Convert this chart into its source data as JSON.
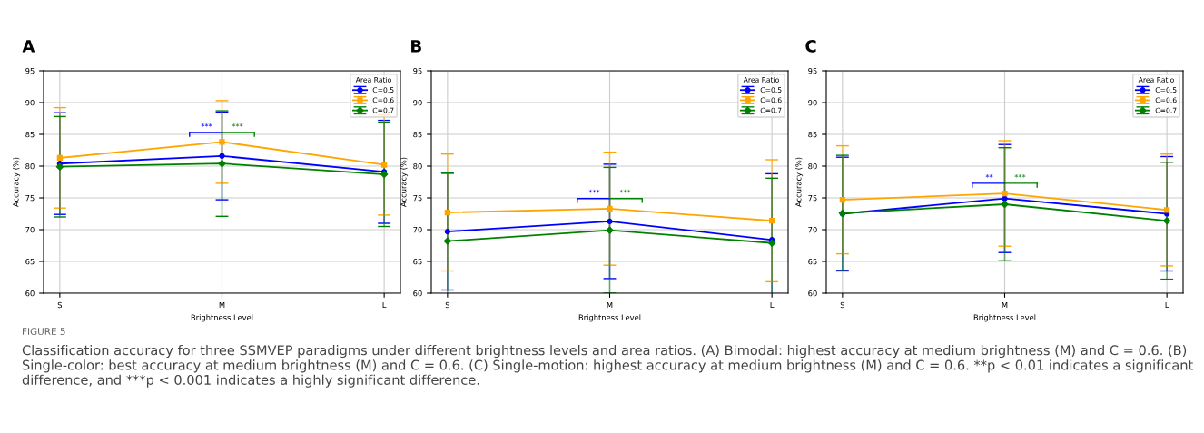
{
  "chart_data": [
    {
      "type": "line",
      "title": "A",
      "xlabel": "Brightness Level",
      "ylabel": "Accuracy (%)",
      "categories": [
        "S",
        "M",
        "L"
      ],
      "ylim": [
        60,
        95
      ],
      "yticks": [
        60,
        65,
        70,
        75,
        80,
        85,
        90,
        95
      ],
      "grid": true,
      "legend": "top right",
      "legend_title": "Area Ratio",
      "series": [
        {
          "name": "C=0.5",
          "color": "#0000ff",
          "marker": "circle",
          "values": [
            80.4,
            81.6,
            79.1
          ],
          "errors": [
            8.0,
            6.9,
            8.1
          ]
        },
        {
          "name": "C=0.6",
          "color": "#ffa500",
          "marker": "square",
          "values": [
            81.3,
            83.8,
            80.2
          ],
          "errors": [
            7.9,
            6.5,
            7.9
          ]
        },
        {
          "name": "C=0.7",
          "color": "#008000",
          "marker": "diamond",
          "values": [
            79.9,
            80.4,
            78.7
          ],
          "errors": [
            7.9,
            8.3,
            8.2
          ]
        }
      ],
      "annotations": [
        {
          "text": "***",
          "x": "M",
          "y": 85.3
        },
        {
          "text": "***",
          "x": "M",
          "y": 85.3
        },
        "FIGURE 5",
        "Classification accuracy for three SSMVEP paradigms under different brightness levels and area ratios. (A) Bimodal: highest accuracy at medium brightness (M) and C = 0.6. (B) Single-color: best accuracy at medium brightness (M) and C = 0.6. (C) Single-motion: highest accuracy at medium brightness (M) and C = 0.6. **p < 0.01 indicates a significant difference, and ***p < 0.001 indicates a highly significant difference."
      ]
    },
    {
      "type": "line",
      "title": "B",
      "xlabel": "Brightness Level",
      "ylabel": "Accuracy (%)",
      "categories": [
        "S",
        "M",
        "L"
      ],
      "ylim": [
        60,
        95
      ],
      "yticks": [
        60,
        65,
        70,
        75,
        80,
        85,
        90,
        95
      ],
      "grid": true,
      "legend": "top right",
      "legend_title": "Area Ratio",
      "series": [
        {
          "name": "C=0.5",
          "color": "#0000ff",
          "marker": "circle",
          "values": [
            69.7,
            71.3,
            68.4
          ],
          "errors": [
            9.2,
            9.0,
            10.4
          ]
        },
        {
          "name": "C=0.6",
          "color": "#ffa500",
          "marker": "square",
          "values": [
            72.7,
            73.3,
            71.4
          ],
          "errors": [
            9.2,
            8.9,
            9.6
          ]
        },
        {
          "name": "C=0.7",
          "color": "#008000",
          "marker": "diamond",
          "values": [
            68.2,
            69.9,
            67.9
          ],
          "errors": [
            10.7,
            9.9,
            10.2
          ]
        }
      ],
      "annotations": [
        {
          "text": "***",
          "x": "M",
          "y": 74.9
        },
        {
          "text": "***",
          "x": "M",
          "y": 74.9
        }
      ]
    },
    {
      "type": "line",
      "title": "C",
      "xlabel": "Brightness Level",
      "ylabel": "Accuracy (%)",
      "categories": [
        "S",
        "M",
        "L"
      ],
      "ylim": [
        60,
        95
      ],
      "yticks": [
        60,
        65,
        70,
        75,
        80,
        85,
        90,
        95
      ],
      "grid": true,
      "legend": "top right",
      "legend_title": "Area Ratio",
      "series": [
        {
          "name": "C=0.5",
          "color": "#0000ff",
          "marker": "circle",
          "values": [
            72.5,
            74.9,
            72.5
          ],
          "errors": [
            8.9,
            8.5,
            9.0
          ]
        },
        {
          "name": "C=0.6",
          "color": "#ffa500",
          "marker": "square",
          "values": [
            74.7,
            75.7,
            73.1
          ],
          "errors": [
            8.5,
            8.3,
            8.8
          ]
        },
        {
          "name": "C=0.7",
          "color": "#008000",
          "marker": "diamond",
          "values": [
            72.6,
            74.0,
            71.4
          ],
          "errors": [
            9.1,
            8.9,
            9.2
          ]
        }
      ],
      "annotations": [
        {
          "text": "**",
          "x": "M",
          "y": 77.3
        },
        {
          "text": "***",
          "x": "M",
          "y": 77.3
        }
      ]
    }
  ]
}
